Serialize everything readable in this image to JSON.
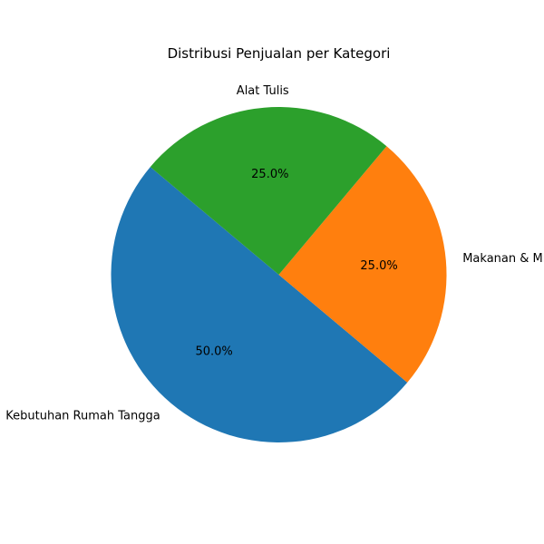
{
  "chart_data": {
    "type": "pie",
    "title": "Distribusi Penjualan per Kategori",
    "categories": [
      "Kebutuhan Rumah Tangga",
      "Makanan & Minuman",
      "Alat Tulis"
    ],
    "values": [
      50.0,
      25.0,
      25.0
    ],
    "percent_labels": [
      "50.0%",
      "25.0%",
      "25.0%"
    ],
    "colors": [
      "#1f77b4",
      "#ff7f0e",
      "#2ca02c"
    ],
    "start_angle_deg": 140,
    "direction": "counterclockwise",
    "legend": "none"
  }
}
